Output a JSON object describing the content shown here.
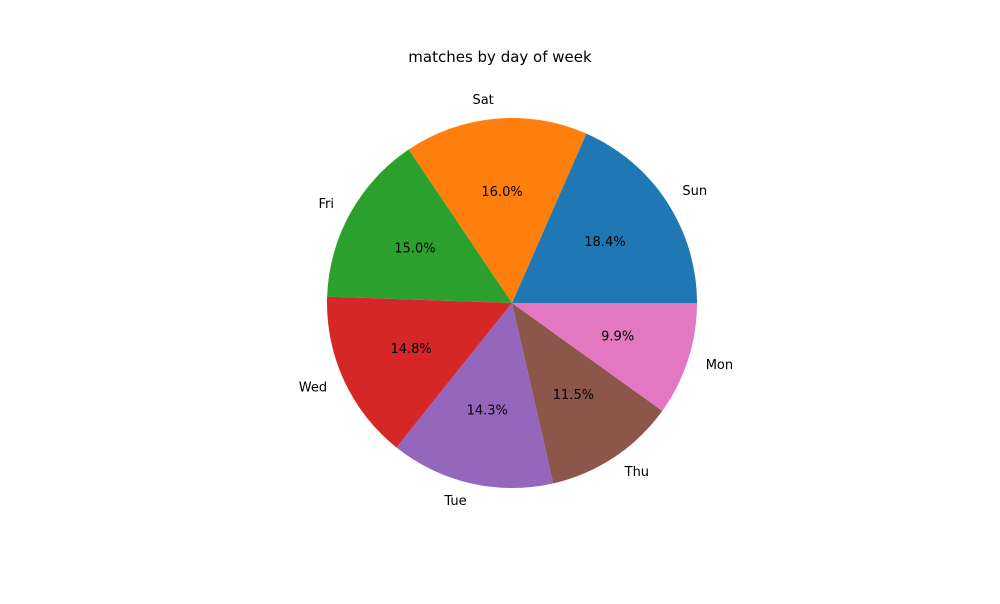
{
  "chart_data": {
    "type": "pie",
    "title": "matches by day of week",
    "categories": [
      "Sun",
      "Sat",
      "Fri",
      "Wed",
      "Tue",
      "Thu",
      "Mon"
    ],
    "values": [
      18.4,
      16.0,
      15.0,
      14.8,
      14.3,
      11.5,
      9.9
    ],
    "value_labels": [
      "18.4%",
      "16.0%",
      "15.0%",
      "14.8%",
      "14.3%",
      "11.5%",
      "9.9%"
    ],
    "colors": [
      "#1f77b4",
      "#ff7f0e",
      "#2ca02c",
      "#d62728",
      "#9467bd",
      "#8c564b",
      "#e377c2"
    ],
    "start_angle_deg": 0,
    "direction": "counterclockwise",
    "legend": "none"
  }
}
